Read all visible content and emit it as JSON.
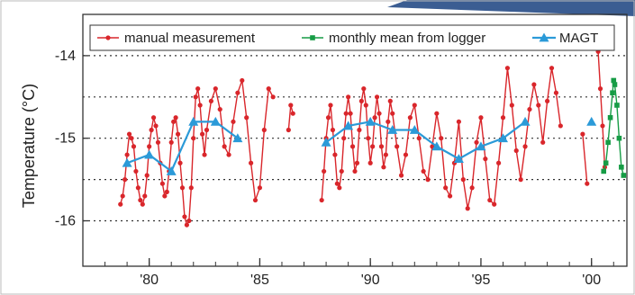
{
  "colors": {
    "manual": "#d9262b",
    "logger": "#169c45",
    "magt": "#2b9ad8",
    "grid": "#333333",
    "frame": "#333333",
    "photo_corner": "#3b5d92"
  },
  "chart_data": {
    "type": "line",
    "title": "",
    "xlabel": "",
    "ylabel": "Temperature (°C)",
    "xlim": [
      1977.0,
      2001.6
    ],
    "ylim": [
      -16.55,
      -13.5
    ],
    "x_major_ticks": [
      1980,
      1985,
      1990,
      1995,
      2000
    ],
    "x_tick_labels": [
      "'80",
      "'85",
      "'90",
      "'95",
      "'00"
    ],
    "x_minor_ticks": [
      1978,
      1979,
      1980,
      1981,
      1982,
      1983,
      1984,
      1985,
      1986,
      1987,
      1988,
      1989,
      1990,
      1991,
      1992,
      1993,
      1994,
      1995,
      1996,
      1997,
      1998,
      1999,
      2000,
      2001
    ],
    "y_ticks": [
      -16,
      -15,
      -14
    ],
    "y_tick_labels": [
      "-16",
      "-15",
      "-14"
    ],
    "gridlines_y": [
      -16,
      -15.5,
      -15,
      -14.5,
      -14
    ],
    "grid": "horizontal dotted",
    "legend_position": "top",
    "legend": [
      "manual measurement",
      "monthly mean from logger",
      "MAGT"
    ],
    "series": [
      {
        "name": "manual measurement",
        "color_key": "manual",
        "marker": "circle",
        "segments": [
          [
            [
              1978.7,
              -15.8
            ],
            [
              1978.8,
              -15.7
            ],
            [
              1978.9,
              -15.5
            ],
            [
              1979.0,
              -15.2
            ],
            [
              1979.1,
              -14.95
            ],
            [
              1979.2,
              -15.0
            ],
            [
              1979.3,
              -15.1
            ],
            [
              1979.4,
              -15.4
            ],
            [
              1979.5,
              -15.6
            ],
            [
              1979.6,
              -15.75
            ],
            [
              1979.7,
              -15.8
            ],
            [
              1979.8,
              -15.7
            ],
            [
              1979.9,
              -15.45
            ],
            [
              1980.0,
              -15.1
            ],
            [
              1980.1,
              -14.9
            ],
            [
              1980.2,
              -14.75
            ],
            [
              1980.3,
              -14.85
            ],
            [
              1980.4,
              -15.05
            ],
            [
              1980.5,
              -15.3
            ],
            [
              1980.6,
              -15.55
            ],
            [
              1980.7,
              -15.7
            ],
            [
              1980.8,
              -15.65
            ],
            [
              1980.9,
              -15.4
            ],
            [
              1981.0,
              -15.05
            ],
            [
              1981.1,
              -14.8
            ],
            [
              1981.2,
              -14.75
            ],
            [
              1981.3,
              -14.95
            ],
            [
              1981.4,
              -15.3
            ],
            [
              1981.5,
              -15.6
            ],
            [
              1981.6,
              -15.95
            ],
            [
              1981.7,
              -16.05
            ],
            [
              1981.8,
              -16.0
            ],
            [
              1981.9,
              -15.6
            ],
            [
              1982.0,
              -15.0
            ],
            [
              1982.1,
              -14.5
            ],
            [
              1982.2,
              -14.4
            ],
            [
              1982.3,
              -14.6
            ],
            [
              1982.4,
              -14.95
            ],
            [
              1982.5,
              -15.2
            ],
            [
              1982.6,
              -14.9
            ],
            [
              1982.8,
              -14.55
            ],
            [
              1983.0,
              -14.4
            ],
            [
              1983.2,
              -14.65
            ],
            [
              1983.4,
              -15.1
            ],
            [
              1983.6,
              -15.2
            ],
            [
              1983.8,
              -14.8
            ],
            [
              1984.0,
              -14.45
            ],
            [
              1984.2,
              -14.3
            ],
            [
              1984.4,
              -14.75
            ],
            [
              1984.6,
              -15.3
            ],
            [
              1984.8,
              -15.75
            ],
            [
              1985.0,
              -15.6
            ],
            [
              1985.2,
              -14.9
            ],
            [
              1985.4,
              -14.4
            ],
            [
              1985.6,
              -14.5
            ]
          ],
          [
            [
              1986.3,
              -14.9
            ],
            [
              1986.4,
              -14.6
            ],
            [
              1986.5,
              -14.7
            ]
          ],
          [
            [
              1987.8,
              -15.75
            ],
            [
              1987.9,
              -15.4
            ],
            [
              1988.0,
              -15.0
            ],
            [
              1988.1,
              -14.75
            ],
            [
              1988.2,
              -14.6
            ],
            [
              1988.3,
              -14.9
            ],
            [
              1988.4,
              -15.2
            ],
            [
              1988.5,
              -15.55
            ],
            [
              1988.6,
              -15.6
            ],
            [
              1988.7,
              -15.4
            ],
            [
              1988.8,
              -15.0
            ],
            [
              1988.9,
              -14.7
            ],
            [
              1989.0,
              -14.5
            ],
            [
              1989.1,
              -14.7
            ],
            [
              1989.2,
              -15.1
            ],
            [
              1989.3,
              -15.4
            ],
            [
              1989.4,
              -15.3
            ],
            [
              1989.5,
              -14.9
            ],
            [
              1989.6,
              -14.55
            ],
            [
              1989.7,
              -14.4
            ],
            [
              1989.8,
              -14.6
            ],
            [
              1989.9,
              -15.0
            ],
            [
              1990.0,
              -15.3
            ],
            [
              1990.1,
              -15.1
            ],
            [
              1990.2,
              -14.75
            ],
            [
              1990.3,
              -14.5
            ],
            [
              1990.4,
              -14.7
            ],
            [
              1990.5,
              -15.1
            ],
            [
              1990.6,
              -15.35
            ],
            [
              1990.7,
              -15.2
            ],
            [
              1990.8,
              -14.8
            ],
            [
              1990.9,
              -14.55
            ],
            [
              1991.0,
              -14.7
            ],
            [
              1991.2,
              -15.1
            ],
            [
              1991.4,
              -15.45
            ],
            [
              1991.6,
              -15.2
            ],
            [
              1991.8,
              -14.75
            ],
            [
              1992.0,
              -14.6
            ],
            [
              1992.2,
              -15.0
            ],
            [
              1992.4,
              -15.4
            ],
            [
              1992.6,
              -15.5
            ],
            [
              1992.8,
              -15.1
            ],
            [
              1993.0,
              -14.7
            ],
            [
              1993.2,
              -15.0
            ],
            [
              1993.4,
              -15.6
            ],
            [
              1993.6,
              -15.7
            ],
            [
              1993.8,
              -15.3
            ],
            [
              1994.0,
              -14.8
            ],
            [
              1994.2,
              -15.5
            ],
            [
              1994.4,
              -15.85
            ],
            [
              1994.6,
              -15.6
            ],
            [
              1994.8,
              -15.05
            ],
            [
              1995.0,
              -14.75
            ],
            [
              1995.2,
              -15.25
            ],
            [
              1995.4,
              -15.75
            ],
            [
              1995.6,
              -15.8
            ],
            [
              1995.8,
              -15.3
            ],
            [
              1996.0,
              -14.75
            ],
            [
              1996.2,
              -14.15
            ],
            [
              1996.4,
              -14.6
            ],
            [
              1996.6,
              -15.15
            ],
            [
              1996.8,
              -15.5
            ],
            [
              1997.0,
              -15.1
            ],
            [
              1997.2,
              -14.65
            ],
            [
              1997.4,
              -14.35
            ],
            [
              1997.6,
              -14.6
            ],
            [
              1997.8,
              -15.05
            ],
            [
              1998.0,
              -14.55
            ],
            [
              1998.2,
              -14.15
            ],
            [
              1998.4,
              -14.45
            ],
            [
              1998.6,
              -14.85
            ]
          ],
          [
            [
              1999.6,
              -14.95
            ],
            [
              1999.8,
              -15.55
            ]
          ],
          [
            [
              2000.3,
              -13.95
            ],
            [
              2000.4,
              -14.4
            ],
            [
              2000.5,
              -14.85
            ],
            [
              2000.6,
              -15.35
            ]
          ]
        ]
      },
      {
        "name": "monthly mean from logger",
        "color_key": "logger",
        "marker": "square",
        "segments": [
          [
            [
              2000.55,
              -15.4
            ],
            [
              2000.65,
              -15.3
            ],
            [
              2000.75,
              -15.05
            ],
            [
              2000.85,
              -14.75
            ],
            [
              2000.95,
              -14.45
            ],
            [
              2001.0,
              -14.3
            ],
            [
              2001.05,
              -14.35
            ],
            [
              2001.15,
              -14.6
            ],
            [
              2001.25,
              -15.0
            ],
            [
              2001.35,
              -15.35
            ],
            [
              2001.45,
              -15.45
            ]
          ]
        ]
      },
      {
        "name": "MAGT",
        "color_key": "magt",
        "marker": "triangle",
        "segments": [
          [
            [
              1979.0,
              -15.3
            ],
            [
              1980.0,
              -15.2
            ],
            [
              1981.0,
              -15.4
            ],
            [
              1982.0,
              -14.8
            ],
            [
              1983.0,
              -14.8
            ],
            [
              1984.0,
              -15.0
            ]
          ],
          [
            [
              1988.0,
              -15.05
            ],
            [
              1989.0,
              -14.85
            ],
            [
              1990.0,
              -14.8
            ],
            [
              1991.0,
              -14.9
            ],
            [
              1992.0,
              -14.9
            ],
            [
              1993.0,
              -15.1
            ],
            [
              1994.0,
              -15.25
            ],
            [
              1995.0,
              -15.1
            ],
            [
              1996.0,
              -15.0
            ],
            [
              1997.0,
              -14.8
            ]
          ],
          [
            [
              2000.0,
              -14.8
            ]
          ]
        ]
      }
    ]
  }
}
